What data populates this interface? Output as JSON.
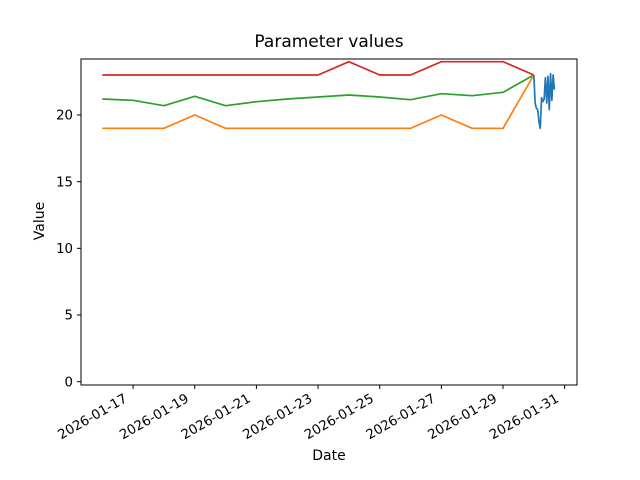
{
  "chart_data": {
    "type": "line",
    "title": "Parameter values",
    "xlabel": "Date",
    "ylabel": "Value",
    "grid": false,
    "legend": "none",
    "y_ticks": [
      0,
      5,
      10,
      15,
      20
    ],
    "ylim": [
      -0.25,
      24.2
    ],
    "x_tick_labels": [
      "2026-01-17",
      "2026-01-19",
      "2026-01-21",
      "2026-01-23",
      "2026-01-25",
      "2026-01-27",
      "2026-01-29",
      "2026-01-31"
    ],
    "x_tick_day_offsets": [
      0,
      2,
      4,
      6,
      8,
      10,
      12,
      14
    ],
    "xlim_day_offsets": [
      -1.69,
      14.4
    ],
    "series": [
      {
        "name": "red",
        "color": "#d62728",
        "start": "2026-01-16",
        "start_day_offset": -1,
        "step_days": 1,
        "values": [
          23,
          23,
          23,
          23,
          23,
          23,
          23,
          23,
          24,
          23,
          23,
          24,
          24,
          24,
          23
        ]
      },
      {
        "name": "green",
        "color": "#2ca02c",
        "start": "2026-01-16",
        "start_day_offset": -1,
        "step_days": 1,
        "values": [
          21.2,
          21.1,
          20.7,
          21.4,
          20.7,
          21.0,
          21.2,
          21.35,
          21.5,
          21.35,
          21.15,
          21.6,
          21.45,
          21.7,
          23.0
        ]
      },
      {
        "name": "orange",
        "color": "#ff7f0e",
        "start": "2026-01-16",
        "start_day_offset": -1,
        "step_days": 1,
        "values": [
          19,
          19,
          19,
          20,
          19,
          19,
          19,
          19,
          19,
          19,
          19,
          20,
          19,
          19,
          23
        ]
      },
      {
        "name": "blue",
        "color": "#1f77b4",
        "start": "2026-01-30",
        "start_day_offset": 13,
        "step_days": 0.0417,
        "values": [
          23.0,
          20.9,
          20.5,
          20.4,
          19.5,
          19.0,
          21.3,
          21.0,
          21.2,
          22.8,
          20.9,
          22.9,
          20.4,
          23.1,
          21.1,
          23.0,
          21.9
        ]
      }
    ]
  }
}
